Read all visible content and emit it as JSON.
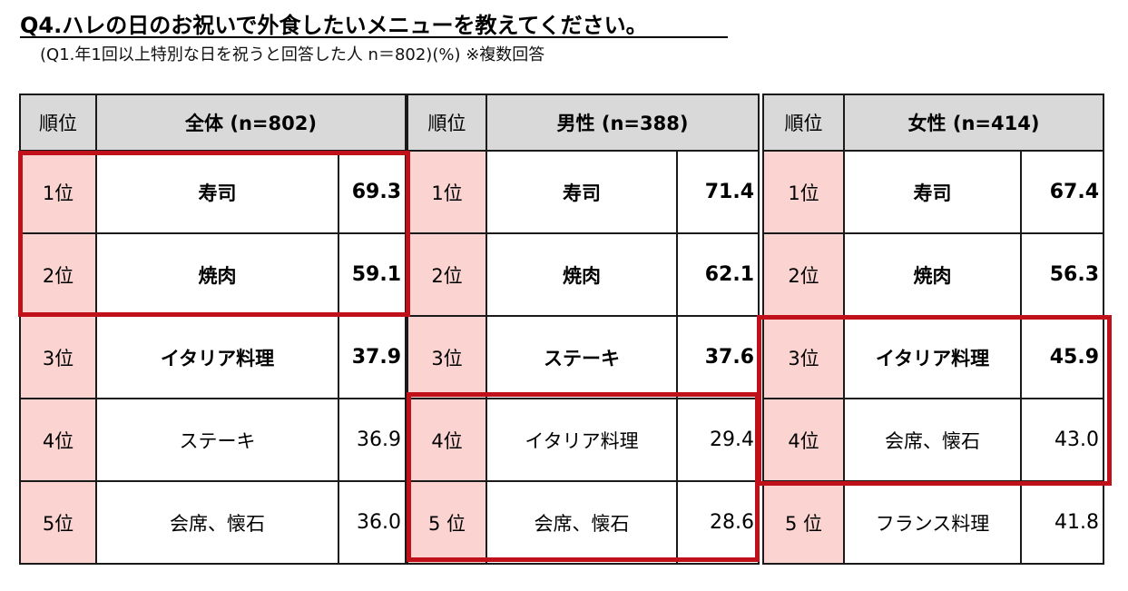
{
  "title": "Q4.ハレの日のお祝いで外食したいメニューを教えてください。",
  "subtitle": "(Q1.年1回以上特別な日を祝うと回答した人 n＝802)(%) ※複数回答",
  "groups": [
    {
      "rank_header": "順位",
      "header": "全体 (n=802)",
      "rows": [
        {
          "rank": "1位",
          "item": "寿司",
          "value": "69.3"
        },
        {
          "rank": "2位",
          "item": "焼肉",
          "value": "59.1"
        },
        {
          "rank": "3位",
          "item": "イタリア料理",
          "value": "37.9"
        },
        {
          "rank": "4位",
          "item": "ステーキ",
          "value": "36.9"
        },
        {
          "rank": "5位",
          "item": "会席、懐石",
          "value": "36.0"
        }
      ]
    },
    {
      "rank_header": "順位",
      "header": "男性 (n=388)",
      "rows": [
        {
          "rank": "1位",
          "item": "寿司",
          "value": "71.4"
        },
        {
          "rank": "2位",
          "item": "焼肉",
          "value": "62.1"
        },
        {
          "rank": "3位",
          "item": "ステーキ",
          "value": "37.6"
        },
        {
          "rank": "4位",
          "item": "イタリア料理",
          "value": "29.4"
        },
        {
          "rank": "5 位",
          "item": "会席、懐石",
          "value": "28.6"
        }
      ]
    },
    {
      "rank_header": "順位",
      "header": "女性 (n=414)",
      "rows": [
        {
          "rank": "1位",
          "item": "寿司",
          "value": "67.4"
        },
        {
          "rank": "2位",
          "item": "焼肉",
          "value": "56.3"
        },
        {
          "rank": "3位",
          "item": "イタリア料理",
          "value": "45.9"
        },
        {
          "rank": "4位",
          "item": "会席、懐石",
          "value": "43.0"
        },
        {
          "rank": "5 位",
          "item": "フランス料理",
          "value": "41.8"
        }
      ]
    }
  ],
  "highlight_color": "#c0101a",
  "rank_cell_color": "#fbd3d0",
  "header_cell_color": "#d9d9d9"
}
